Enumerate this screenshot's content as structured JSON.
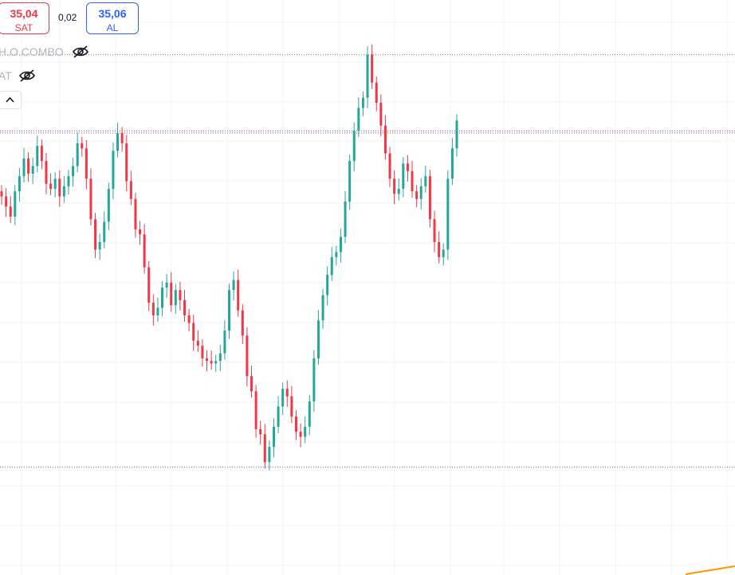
{
  "trade": {
    "sell_price": "35,04",
    "sell_label": "SAT",
    "spread": "0,02",
    "buy_price": "35,06",
    "buy_label": "AL"
  },
  "legend": {
    "row1_text": "H.O.COMBO",
    "row1_icon": "eye-crossed-icon",
    "row2_text": "AT",
    "row2_icon": "eye-crossed-icon",
    "collapse_icon": "chevron-up-icon"
  },
  "colors": {
    "up": "#26a69a",
    "down": "#f23645",
    "sell": "#f23645",
    "buy": "#2962ff",
    "grid": "#f0f3fa",
    "orange_line": "#ff9800"
  },
  "chart_data": {
    "type": "candlestick",
    "series": [
      {
        "values": [
          32.5,
          32.1,
          31.7,
          32.7,
          33.3,
          34.0,
          33.4,
          33.7,
          34.5,
          33.9,
          33.0,
          32.8,
          33.2,
          32.5,
          32.9,
          33.3,
          33.7,
          34.6,
          34.4,
          33.2,
          31.6,
          30.4,
          30.7,
          31.5,
          32.8,
          34.3,
          35.0,
          34.6,
          33.1,
          32.4,
          31.2,
          31.0,
          29.7,
          28.3,
          27.8,
          28.1,
          28.9,
          29.1,
          28.2,
          28.8,
          28.4,
          27.8,
          27.5,
          26.8,
          26.6,
          26.1,
          26.0,
          25.9,
          26.0,
          26.3,
          27.2,
          28.8,
          29.2,
          28.0,
          27.0,
          25.4,
          24.8,
          23.3,
          23.1,
          22.0,
          22.6,
          23.4,
          24.2,
          24.9,
          24.6,
          23.8,
          23.2,
          23.0,
          23.4,
          24.4,
          26.1,
          27.6,
          28.6,
          29.4,
          30.1,
          30.3,
          30.9,
          32.3,
          33.9,
          35.1,
          36.0,
          36.4,
          38.1,
          37.0,
          36.2,
          35.3,
          34.2,
          33.2,
          32.6,
          32.8,
          33.8,
          33.5,
          32.7,
          32.4,
          32.9,
          33.3,
          31.6,
          30.7,
          30.1,
          30.4,
          33.2,
          34.4,
          35.5
        ]
      }
    ],
    "ylim": [
      21.6,
      38.5
    ],
    "reference_lines": [
      38.1,
      35.06,
      35.04,
      21.8
    ],
    "grid": true
  }
}
